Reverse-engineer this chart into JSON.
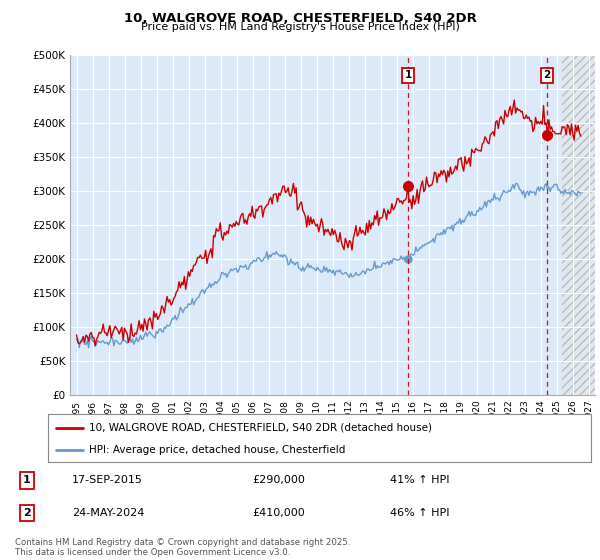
{
  "title": "10, WALGROVE ROAD, CHESTERFIELD, S40 2DR",
  "subtitle": "Price paid vs. HM Land Registry's House Price Index (HPI)",
  "ylim": [
    0,
    500000
  ],
  "yticks": [
    0,
    50000,
    100000,
    150000,
    200000,
    250000,
    300000,
    350000,
    400000,
    450000,
    500000
  ],
  "ytick_labels": [
    "£0",
    "£50K",
    "£100K",
    "£150K",
    "£200K",
    "£250K",
    "£300K",
    "£350K",
    "£400K",
    "£450K",
    "£500K"
  ],
  "xlim_start": 1994.6,
  "xlim_end": 2027.4,
  "event1_x": 2015.72,
  "event1_y_red": 290000,
  "event1_y_blue": 205000,
  "event1_label": "1",
  "event1_date": "17-SEP-2015",
  "event1_price": "£290,000",
  "event1_hpi": "41% ↑ HPI",
  "event2_x": 2024.39,
  "event2_y_red": 410000,
  "event2_y_blue": 280000,
  "event2_label": "2",
  "event2_date": "24-MAY-2024",
  "event2_price": "£410,000",
  "event2_hpi": "46% ↑ HPI",
  "line1_color": "#cc0000",
  "line2_color": "#6699cc",
  "legend_line1": "10, WALGROVE ROAD, CHESTERFIELD, S40 2DR (detached house)",
  "legend_line2": "HPI: Average price, detached house, Chesterfield",
  "footer": "Contains HM Land Registry data © Crown copyright and database right 2025.\nThis data is licensed under the Open Government Licence v3.0.",
  "plot_bg_color": "#dce9f8",
  "grid_color": "#ffffff",
  "future_start": 2025.3,
  "marker_y": 470000
}
